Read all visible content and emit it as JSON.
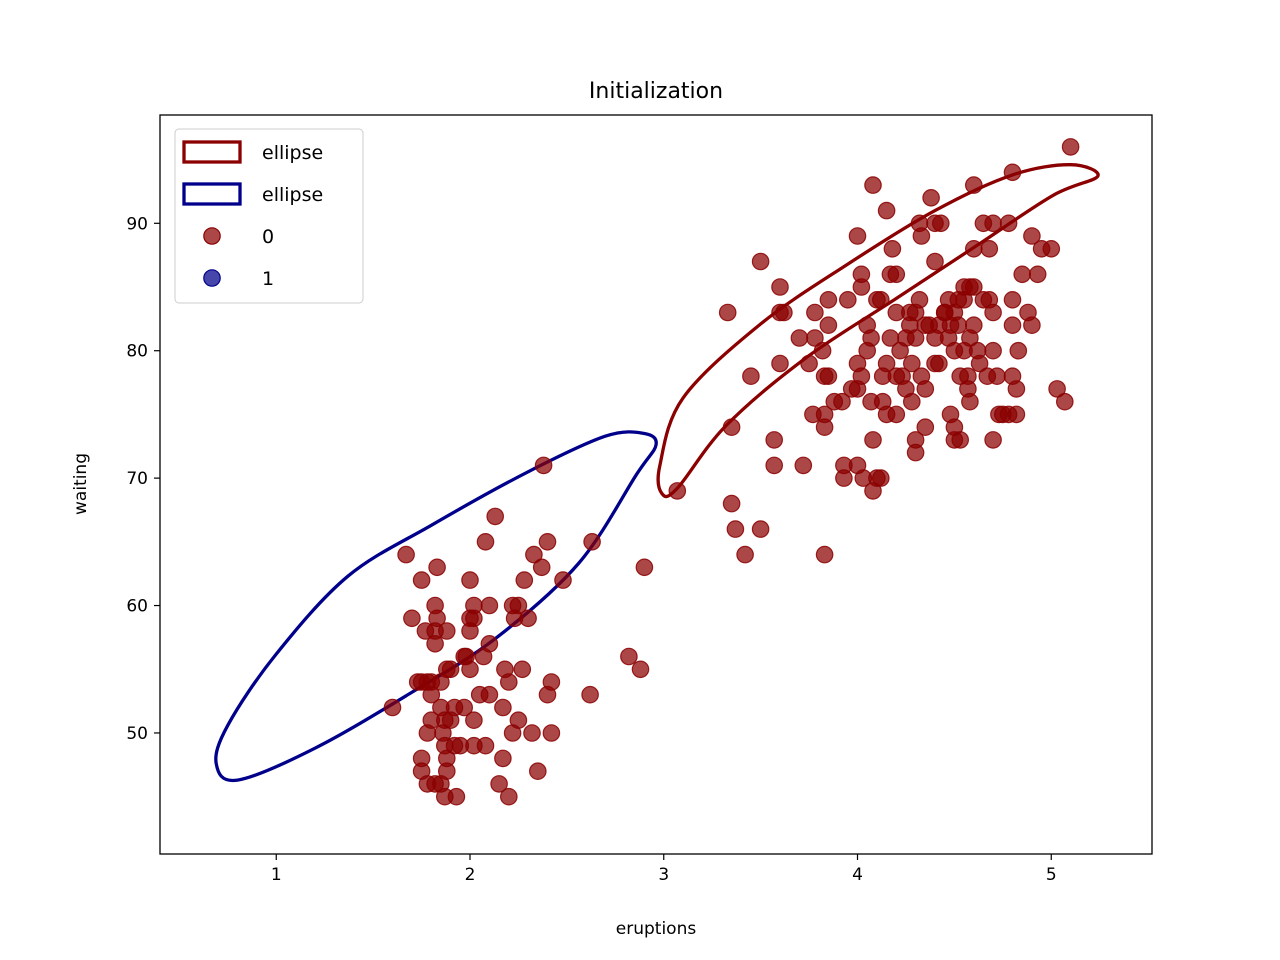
{
  "chart_data": {
    "type": "scatter",
    "title": "Initialization",
    "xlabel": "eruptions",
    "ylabel": "waiting",
    "xlim": [
      0.4,
      5.52
    ],
    "ylim": [
      40.5,
      98.5
    ],
    "xticks": [
      1,
      2,
      3,
      4,
      5
    ],
    "yticks": [
      50,
      60,
      70,
      80,
      90
    ],
    "grid": false,
    "legend_position": "top-left",
    "legend": [
      {
        "label": "ellipse",
        "kind": "ellipse",
        "color": "#8b0000"
      },
      {
        "label": "ellipse",
        "kind": "ellipse",
        "color": "#00008b"
      },
      {
        "label": "0",
        "kind": "point",
        "color": "#8b0000"
      },
      {
        "label": "1",
        "kind": "point",
        "color": "#00008b"
      }
    ],
    "ellipses": [
      {
        "label": "ellipse",
        "color": "#8b0000",
        "outline": [
          [
            3.07,
            69.2
          ],
          [
            3.32,
            74.1
          ],
          [
            3.73,
            79.4
          ],
          [
            4.19,
            84.0
          ],
          [
            4.62,
            88.3
          ],
          [
            5.01,
            92.2
          ],
          [
            5.24,
            93.7
          ],
          [
            5.1,
            94.6
          ],
          [
            4.8,
            93.8
          ],
          [
            4.4,
            91.0
          ],
          [
            3.95,
            86.8
          ],
          [
            3.5,
            82.1
          ],
          [
            3.1,
            76.3
          ],
          [
            2.98,
            71.0
          ],
          [
            2.99,
            68.8
          ],
          [
            3.07,
            69.2
          ]
        ]
      },
      {
        "label": "ellipse",
        "color": "#00008b",
        "outline": [
          [
            0.69,
            47.6
          ],
          [
            0.8,
            46.3
          ],
          [
            1.2,
            48.8
          ],
          [
            1.69,
            53.1
          ],
          [
            2.13,
            57.4
          ],
          [
            2.56,
            63.3
          ],
          [
            2.86,
            70.3
          ],
          [
            2.96,
            72.6
          ],
          [
            2.9,
            73.5
          ],
          [
            2.7,
            73.3
          ],
          [
            2.3,
            70.5
          ],
          [
            1.8,
            66.3
          ],
          [
            1.37,
            62.3
          ],
          [
            1.0,
            56.2
          ],
          [
            0.75,
            50.6
          ],
          [
            0.69,
            47.6
          ]
        ]
      }
    ],
    "series": [
      {
        "name": "0",
        "color": "#8b0000",
        "points": [
          [
            1.6,
            52
          ],
          [
            1.67,
            64
          ],
          [
            1.7,
            59
          ],
          [
            1.73,
            54
          ],
          [
            1.75,
            54
          ],
          [
            1.75,
            62
          ],
          [
            1.75,
            48
          ],
          [
            1.75,
            47
          ],
          [
            1.77,
            58
          ],
          [
            1.78,
            54
          ],
          [
            1.78,
            50
          ],
          [
            1.78,
            46
          ],
          [
            1.8,
            54
          ],
          [
            1.8,
            51
          ],
          [
            1.8,
            53
          ],
          [
            1.82,
            58
          ],
          [
            1.82,
            57
          ],
          [
            1.82,
            60
          ],
          [
            1.82,
            46
          ],
          [
            1.83,
            59
          ],
          [
            1.83,
            63
          ],
          [
            1.85,
            54
          ],
          [
            1.85,
            52
          ],
          [
            1.85,
            46
          ],
          [
            1.86,
            50
          ],
          [
            1.87,
            51
          ],
          [
            1.87,
            49
          ],
          [
            1.87,
            45
          ],
          [
            1.88,
            58
          ],
          [
            1.88,
            48
          ],
          [
            1.88,
            47
          ],
          [
            1.88,
            55
          ],
          [
            1.9,
            51
          ],
          [
            1.9,
            55
          ],
          [
            1.92,
            52
          ],
          [
            1.92,
            49
          ],
          [
            1.93,
            45
          ],
          [
            1.95,
            49
          ],
          [
            1.97,
            56
          ],
          [
            1.97,
            52
          ],
          [
            1.98,
            56
          ],
          [
            2.0,
            59
          ],
          [
            2.0,
            62
          ],
          [
            2.0,
            58
          ],
          [
            2.0,
            55
          ],
          [
            2.02,
            59
          ],
          [
            2.02,
            60
          ],
          [
            2.02,
            51
          ],
          [
            2.02,
            49
          ],
          [
            2.05,
            53
          ],
          [
            2.07,
            56
          ],
          [
            2.08,
            65
          ],
          [
            2.08,
            49
          ],
          [
            2.1,
            57
          ],
          [
            2.1,
            60
          ],
          [
            2.1,
            53
          ],
          [
            2.13,
            67
          ],
          [
            2.15,
            46
          ],
          [
            2.17,
            52
          ],
          [
            2.17,
            48
          ],
          [
            2.18,
            55
          ],
          [
            2.2,
            54
          ],
          [
            2.2,
            45
          ],
          [
            2.22,
            60
          ],
          [
            2.22,
            50
          ],
          [
            2.23,
            59
          ],
          [
            2.25,
            60
          ],
          [
            2.25,
            51
          ],
          [
            2.27,
            55
          ],
          [
            2.28,
            62
          ],
          [
            2.3,
            59
          ],
          [
            2.32,
            50
          ],
          [
            2.33,
            64
          ],
          [
            2.35,
            47
          ],
          [
            2.37,
            63
          ],
          [
            2.38,
            71
          ],
          [
            2.4,
            65
          ],
          [
            2.4,
            53
          ],
          [
            2.42,
            54
          ],
          [
            2.42,
            50
          ],
          [
            2.48,
            62
          ],
          [
            2.62,
            53
          ],
          [
            2.63,
            65
          ],
          [
            2.82,
            56
          ],
          [
            2.88,
            55
          ],
          [
            2.9,
            63
          ],
          [
            3.07,
            69
          ],
          [
            3.33,
            83
          ],
          [
            3.35,
            74
          ],
          [
            3.35,
            68
          ],
          [
            3.37,
            66
          ],
          [
            3.42,
            64
          ],
          [
            3.45,
            78
          ],
          [
            3.5,
            87
          ],
          [
            3.5,
            66
          ],
          [
            3.57,
            73
          ],
          [
            3.57,
            71
          ],
          [
            3.6,
            83
          ],
          [
            3.6,
            85
          ],
          [
            3.6,
            79
          ],
          [
            3.62,
            83
          ],
          [
            3.7,
            81
          ],
          [
            3.72,
            71
          ],
          [
            3.75,
            79
          ],
          [
            3.77,
            75
          ],
          [
            3.78,
            81
          ],
          [
            3.78,
            83
          ],
          [
            3.82,
            80
          ],
          [
            3.83,
            64
          ],
          [
            3.83,
            78
          ],
          [
            3.83,
            75
          ],
          [
            3.83,
            74
          ],
          [
            3.85,
            78
          ],
          [
            3.85,
            82
          ],
          [
            3.85,
            84
          ],
          [
            3.88,
            76
          ],
          [
            3.92,
            76
          ],
          [
            3.93,
            71
          ],
          [
            3.93,
            70
          ],
          [
            3.95,
            84
          ],
          [
            3.97,
            77
          ],
          [
            4.0,
            89
          ],
          [
            4.0,
            71
          ],
          [
            4.0,
            79
          ],
          [
            4.0,
            77
          ],
          [
            4.02,
            86
          ],
          [
            4.02,
            85
          ],
          [
            4.02,
            78
          ],
          [
            4.03,
            70
          ],
          [
            4.05,
            80
          ],
          [
            4.05,
            82
          ],
          [
            4.07,
            81
          ],
          [
            4.07,
            76
          ],
          [
            4.08,
            73
          ],
          [
            4.08,
            69
          ],
          [
            4.08,
            93
          ],
          [
            4.1,
            84
          ],
          [
            4.1,
            70
          ],
          [
            4.12,
            84
          ],
          [
            4.12,
            70
          ],
          [
            4.13,
            78
          ],
          [
            4.13,
            76
          ],
          [
            4.15,
            91
          ],
          [
            4.15,
            79
          ],
          [
            4.15,
            75
          ],
          [
            4.17,
            86
          ],
          [
            4.17,
            81
          ],
          [
            4.18,
            88
          ],
          [
            4.2,
            86
          ],
          [
            4.2,
            78
          ],
          [
            4.2,
            75
          ],
          [
            4.2,
            83
          ],
          [
            4.22,
            80
          ],
          [
            4.23,
            78
          ],
          [
            4.25,
            81
          ],
          [
            4.25,
            77
          ],
          [
            4.27,
            83
          ],
          [
            4.27,
            82
          ],
          [
            4.28,
            79
          ],
          [
            4.28,
            76
          ],
          [
            4.3,
            83
          ],
          [
            4.3,
            81
          ],
          [
            4.3,
            73
          ],
          [
            4.3,
            72
          ],
          [
            4.32,
            90
          ],
          [
            4.32,
            84
          ],
          [
            4.33,
            78
          ],
          [
            4.33,
            89
          ],
          [
            4.35,
            82
          ],
          [
            4.35,
            74
          ],
          [
            4.35,
            77
          ],
          [
            4.37,
            82
          ],
          [
            4.38,
            92
          ],
          [
            4.4,
            90
          ],
          [
            4.4,
            81
          ],
          [
            4.4,
            79
          ],
          [
            4.4,
            87
          ],
          [
            4.42,
            82
          ],
          [
            4.42,
            79
          ],
          [
            4.43,
            90
          ],
          [
            4.45,
            83
          ],
          [
            4.45,
            83
          ],
          [
            4.47,
            84
          ],
          [
            4.47,
            81
          ],
          [
            4.48,
            82
          ],
          [
            4.48,
            75
          ],
          [
            4.5,
            83
          ],
          [
            4.5,
            80
          ],
          [
            4.5,
            74
          ],
          [
            4.5,
            73
          ],
          [
            4.52,
            84
          ],
          [
            4.52,
            82
          ],
          [
            4.53,
            78
          ],
          [
            4.53,
            73
          ],
          [
            4.55,
            85
          ],
          [
            4.55,
            84
          ],
          [
            4.55,
            80
          ],
          [
            4.57,
            78
          ],
          [
            4.57,
            77
          ],
          [
            4.58,
            85
          ],
          [
            4.58,
            81
          ],
          [
            4.58,
            76
          ],
          [
            4.6,
            88
          ],
          [
            4.6,
            93
          ],
          [
            4.6,
            85
          ],
          [
            4.6,
            82
          ],
          [
            4.62,
            80
          ],
          [
            4.63,
            79
          ],
          [
            4.65,
            90
          ],
          [
            4.65,
            84
          ],
          [
            4.67,
            78
          ],
          [
            4.68,
            88
          ],
          [
            4.68,
            84
          ],
          [
            4.7,
            83
          ],
          [
            4.7,
            80
          ],
          [
            4.7,
            90
          ],
          [
            4.7,
            73
          ],
          [
            4.72,
            78
          ],
          [
            4.73,
            75
          ],
          [
            4.75,
            75
          ],
          [
            4.78,
            90
          ],
          [
            4.78,
            75
          ],
          [
            4.8,
            94
          ],
          [
            4.8,
            84
          ],
          [
            4.8,
            82
          ],
          [
            4.8,
            78
          ],
          [
            4.82,
            77
          ],
          [
            4.82,
            75
          ],
          [
            4.83,
            80
          ],
          [
            4.85,
            86
          ],
          [
            4.88,
            83
          ],
          [
            4.9,
            82
          ],
          [
            4.9,
            89
          ],
          [
            4.93,
            86
          ],
          [
            4.95,
            88
          ],
          [
            5.0,
            88
          ],
          [
            5.03,
            77
          ],
          [
            5.07,
            76
          ],
          [
            5.1,
            96
          ]
        ]
      },
      {
        "name": "1",
        "color": "#00008b",
        "points": []
      }
    ]
  }
}
